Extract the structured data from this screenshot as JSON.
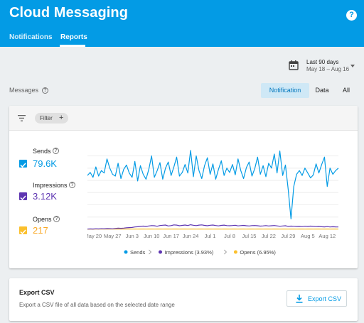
{
  "header": {
    "title": "Cloud Messaging",
    "help_label": "?",
    "tabs": [
      {
        "label": "Notifications",
        "active": false
      },
      {
        "label": "Reports",
        "active": true
      }
    ],
    "accent_color": "#039be5"
  },
  "date_range": {
    "title": "Last 90 days",
    "range": "May 18 – Aug 16",
    "icon": "calendar-icon"
  },
  "messages": {
    "label": "Messages",
    "segments": [
      {
        "label": "Notification",
        "active": true
      },
      {
        "label": "Data",
        "active": false
      },
      {
        "label": "All",
        "active": false
      }
    ]
  },
  "filter": {
    "label": "Filter",
    "icon": "filter-list-icon",
    "add_icon": "plus-icon"
  },
  "metrics": [
    {
      "label": "Sends",
      "value": "79.6K",
      "color": "#039be5",
      "checked": true
    },
    {
      "label": "Impressions",
      "value": "3.12K",
      "color": "#5e35b1",
      "checked": true
    },
    {
      "label": "Opens",
      "value": "217",
      "color": "#fbc02d",
      "checked": true
    }
  ],
  "chart_data": {
    "type": "line",
    "ylim": [
      0,
      1300
    ],
    "yticks": [
      "0",
      "200",
      "400",
      "600",
      "800",
      "1,000",
      "1,200"
    ],
    "xtick_labels": [
      "May 20",
      "May 27",
      "Jun 3",
      "Jun 10",
      "Jun 17",
      "Jun 24",
      "Jul 1",
      "Jul 8",
      "Jul 15",
      "Jul 22",
      "Jul 29",
      "Aug 5",
      "Aug 12"
    ],
    "x": [
      "May 18",
      "May 19",
      "May 20",
      "May 21",
      "May 22",
      "May 23",
      "May 24",
      "May 25",
      "May 26",
      "May 27",
      "May 28",
      "May 29",
      "May 30",
      "May 31",
      "Jun 1",
      "Jun 2",
      "Jun 3",
      "Jun 4",
      "Jun 5",
      "Jun 6",
      "Jun 7",
      "Jun 8",
      "Jun 9",
      "Jun 10",
      "Jun 11",
      "Jun 12",
      "Jun 13",
      "Jun 14",
      "Jun 15",
      "Jun 16",
      "Jun 17",
      "Jun 18",
      "Jun 19",
      "Jun 20",
      "Jun 21",
      "Jun 22",
      "Jun 23",
      "Jun 24",
      "Jun 25",
      "Jun 26",
      "Jun 27",
      "Jun 28",
      "Jun 29",
      "Jun 30",
      "Jul 1",
      "Jul 2",
      "Jul 3",
      "Jul 4",
      "Jul 5",
      "Jul 6",
      "Jul 7",
      "Jul 8",
      "Jul 9",
      "Jul 10",
      "Jul 11",
      "Jul 12",
      "Jul 13",
      "Jul 14",
      "Jul 15",
      "Jul 16",
      "Jul 17",
      "Jul 18",
      "Jul 19",
      "Jul 20",
      "Jul 21",
      "Jul 22",
      "Jul 23",
      "Jul 24",
      "Jul 25",
      "Jul 26",
      "Jul 27",
      "Jul 28",
      "Jul 29",
      "Jul 30",
      "Jul 31",
      "Aug 1",
      "Aug 2",
      "Aug 3",
      "Aug 4",
      "Aug 5",
      "Aug 6",
      "Aug 7",
      "Aug 8",
      "Aug 9",
      "Aug 10",
      "Aug 11",
      "Aug 12",
      "Aug 13",
      "Aug 14",
      "Aug 15",
      "Aug 16"
    ],
    "series": [
      {
        "name": "Sends",
        "color": "#039be5",
        "values": [
          880,
          930,
          850,
          1020,
          870,
          960,
          920,
          1150,
          1000,
          900,
          870,
          1080,
          830,
          980,
          1050,
          920,
          850,
          1110,
          790,
          1040,
          900,
          820,
          980,
          1200,
          850,
          960,
          1090,
          820,
          1000,
          1100,
          880,
          1020,
          1180,
          870,
          930,
          1060,
          920,
          1290,
          860,
          1200,
          960,
          830,
          1040,
          1170,
          900,
          1070,
          820,
          980,
          1120,
          880,
          1000,
          930,
          1060,
          890,
          1150,
          960,
          830,
          1010,
          1100,
          870,
          990,
          1180,
          900,
          1040,
          860,
          1080,
          1000,
          1230,
          920,
          1280,
          880,
          1050,
          650,
          170,
          700,
          900,
          960,
          880,
          1000,
          920,
          840,
          890,
          1070,
          920,
          1060,
          1180,
          700,
          1000,
          900,
          960,
          1000
        ]
      },
      {
        "name": "Impressions",
        "color": "#5e35b1",
        "values": [
          4,
          6,
          5,
          8,
          6,
          9,
          7,
          12,
          10,
          8,
          14,
          18,
          16,
          20,
          24,
          28,
          30,
          38,
          42,
          48,
          52,
          46,
          55,
          60,
          58,
          50,
          62,
          66,
          70,
          54,
          60,
          72,
          68,
          58,
          64,
          70,
          62,
          74,
          66,
          60,
          68,
          72,
          64,
          58,
          66,
          70,
          62,
          56,
          64,
          68,
          60,
          58,
          62,
          66,
          56,
          60,
          64,
          58,
          54,
          60,
          62,
          58,
          52,
          56,
          60,
          54,
          58,
          62,
          56,
          50,
          54,
          58,
          48,
          52,
          50,
          46,
          48,
          44,
          50,
          46,
          52,
          48,
          44,
          46,
          42,
          40,
          44,
          38,
          42,
          40,
          38
        ]
      },
      {
        "name": "Opens",
        "color": "#fbc02d",
        "values": [
          2,
          3,
          2,
          3,
          3,
          4,
          3,
          4,
          3,
          3,
          4,
          4,
          3,
          4,
          4,
          5,
          4,
          5,
          4,
          5,
          5,
          4,
          5,
          5,
          4,
          5,
          5,
          4,
          5,
          5,
          4,
          5,
          5,
          4,
          5,
          5,
          4,
          5,
          5,
          4,
          5,
          5,
          4,
          5,
          5,
          4,
          5,
          5,
          4,
          5,
          5,
          4,
          5,
          5,
          4,
          5,
          5,
          4,
          5,
          5,
          4,
          5,
          5,
          4,
          5,
          5,
          4,
          5,
          5,
          4,
          5,
          5,
          4,
          5,
          5,
          4,
          5,
          5,
          4,
          5,
          5,
          4,
          5,
          5,
          4,
          5,
          5,
          4,
          5,
          5,
          4
        ]
      }
    ],
    "legend": {
      "placement": "bottom",
      "items": [
        {
          "label": "Sends",
          "color": "#039be5"
        },
        {
          "label": "Impressions (3.93%)",
          "color": "#5e35b1"
        },
        {
          "label": "Opens (6.95%)",
          "color": "#fbc02d"
        }
      ]
    },
    "grid": true
  },
  "export": {
    "title": "Export CSV",
    "description": "Export a CSV file of all data based on the selected date range",
    "button_label": "Export CSV",
    "icon": "download-icon"
  }
}
